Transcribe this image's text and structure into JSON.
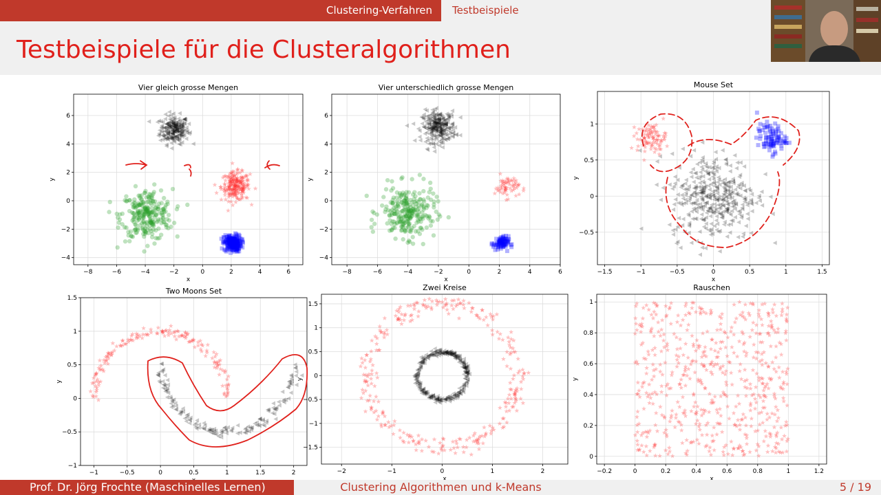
{
  "nav": {
    "section": "Clustering-Verfahren",
    "subsection": "Testbeispiele"
  },
  "slide": {
    "title": "Testbeispiele für die Clusteralgorithmen"
  },
  "footer": {
    "author": "Prof. Dr. Jörg Frochte  (Maschinelles Lernen)",
    "topic": "Clustering Algorithmen und k-Means",
    "page": "5 / 19"
  },
  "colors": {
    "accent": "#c0392b",
    "title": "#e0201b",
    "red": "#ff3333",
    "green": "#2ca02c",
    "blue": "#0000ff",
    "black": "#000000"
  },
  "chart_data": [
    {
      "type": "scatter",
      "title": "Vier gleich grosse Mengen",
      "xlabel": "x",
      "ylabel": "y",
      "xlim": [
        -9,
        7
      ],
      "ylim": [
        -4.5,
        7.5
      ],
      "xticks": [
        -8,
        -6,
        -4,
        -2,
        0,
        2,
        4,
        6
      ],
      "yticks": [
        -4,
        -2,
        0,
        2,
        4,
        6
      ],
      "grid": true,
      "series": [
        {
          "color": "#000000",
          "marker": "triangle",
          "center": [
            -2,
            5
          ],
          "spread": 0.5,
          "n": 220
        },
        {
          "color": "#ff3333",
          "marker": "star",
          "center": [
            2.3,
            1
          ],
          "spread": 0.5,
          "n": 220
        },
        {
          "color": "#2ca02c",
          "marker": "circle",
          "center": [
            -3.9,
            -1
          ],
          "spread": 0.9,
          "n": 260
        },
        {
          "color": "#0000ff",
          "marker": "square",
          "center": [
            2.1,
            -3
          ],
          "spread": 0.3,
          "n": 200
        }
      ]
    },
    {
      "type": "scatter",
      "title": "Vier unterschiedlich grosse Mengen",
      "xlabel": "x",
      "ylabel": "y",
      "xlim": [
        -9,
        6
      ],
      "ylim": [
        -4.5,
        7.5
      ],
      "xticks": [
        -8,
        -6,
        -4,
        -2,
        0,
        2,
        4,
        6
      ],
      "yticks": [
        -4,
        -2,
        0,
        2,
        4,
        6
      ],
      "grid": true,
      "series": [
        {
          "color": "#000000",
          "marker": "triangle",
          "center": [
            -2,
            5.2
          ],
          "spread": 0.55,
          "n": 260
        },
        {
          "color": "#ff3333",
          "marker": "star",
          "center": [
            2.5,
            1
          ],
          "spread": 0.4,
          "n": 60
        },
        {
          "color": "#2ca02c",
          "marker": "circle",
          "center": [
            -4,
            -0.8
          ],
          "spread": 0.9,
          "n": 260
        },
        {
          "color": "#0000ff",
          "marker": "square",
          "center": [
            2.1,
            -3
          ],
          "spread": 0.25,
          "n": 80
        }
      ]
    },
    {
      "type": "scatter",
      "title": "Mouse Set",
      "xlabel": "x",
      "ylabel": "y",
      "xlim": [
        -1.6,
        1.6
      ],
      "ylim": [
        -0.95,
        1.45
      ],
      "xticks": [
        -1.5,
        -1.0,
        -0.5,
        0.0,
        0.5,
        1.0,
        1.5
      ],
      "yticks": [
        -0.5,
        0.0,
        0.5,
        1.0
      ],
      "grid": true,
      "series": [
        {
          "color": "#000000",
          "marker": "triangle",
          "center": [
            0,
            0
          ],
          "spread": 0.3,
          "n": 400
        },
        {
          "color": "#ff3333",
          "marker": "star",
          "center": [
            -0.85,
            0.8
          ],
          "spread": 0.1,
          "n": 90
        },
        {
          "color": "#0000ff",
          "marker": "square",
          "center": [
            0.8,
            0.8
          ],
          "spread": 0.1,
          "n": 90
        }
      ]
    },
    {
      "type": "scatter",
      "title": "Two Moons Set",
      "xlabel": "x",
      "ylabel": "y",
      "xlim": [
        -1.2,
        2.2
      ],
      "ylim": [
        -1.0,
        1.5
      ],
      "xticks": [
        -1.0,
        -0.5,
        0.0,
        0.5,
        1.0,
        1.5,
        2.0
      ],
      "yticks": [
        -1.0,
        -0.5,
        0.0,
        0.5,
        1.0,
        1.5
      ],
      "grid": true,
      "series": [
        {
          "color": "#ff3333",
          "marker": "star",
          "shape": "upper-moon",
          "n": 160
        },
        {
          "color": "#000000",
          "marker": "triangle",
          "shape": "lower-moon",
          "n": 160
        }
      ]
    },
    {
      "type": "scatter",
      "title": "Zwei Kreise",
      "xlabel": "x",
      "ylabel": "y",
      "xlim": [
        -2.4,
        2.5
      ],
      "ylim": [
        -1.85,
        1.7
      ],
      "xticks": [
        -2,
        -1,
        0,
        1,
        2
      ],
      "yticks": [
        -1.5,
        -1.0,
        -0.5,
        0.0,
        0.5,
        1.0,
        1.5
      ],
      "grid": true,
      "series": [
        {
          "color": "#ff3333",
          "marker": "star",
          "shape": "ring",
          "radius": 1.5,
          "n": 300
        },
        {
          "color": "#000000",
          "marker": "triangle",
          "shape": "ring",
          "radius": 0.5,
          "n": 300
        }
      ]
    },
    {
      "type": "scatter",
      "title": "Rauschen",
      "xlabel": "x",
      "ylabel": "y",
      "xlim": [
        -0.25,
        1.25
      ],
      "ylim": [
        -0.05,
        1.05
      ],
      "xticks": [
        -0.2,
        0.0,
        0.2,
        0.4,
        0.6,
        0.8,
        1.0,
        1.2
      ],
      "yticks": [
        0.0,
        0.2,
        0.4,
        0.6,
        0.8,
        1.0
      ],
      "grid": true,
      "series": [
        {
          "color": "#ff3333",
          "marker": "star",
          "shape": "uniform",
          "n": 600
        }
      ]
    }
  ]
}
